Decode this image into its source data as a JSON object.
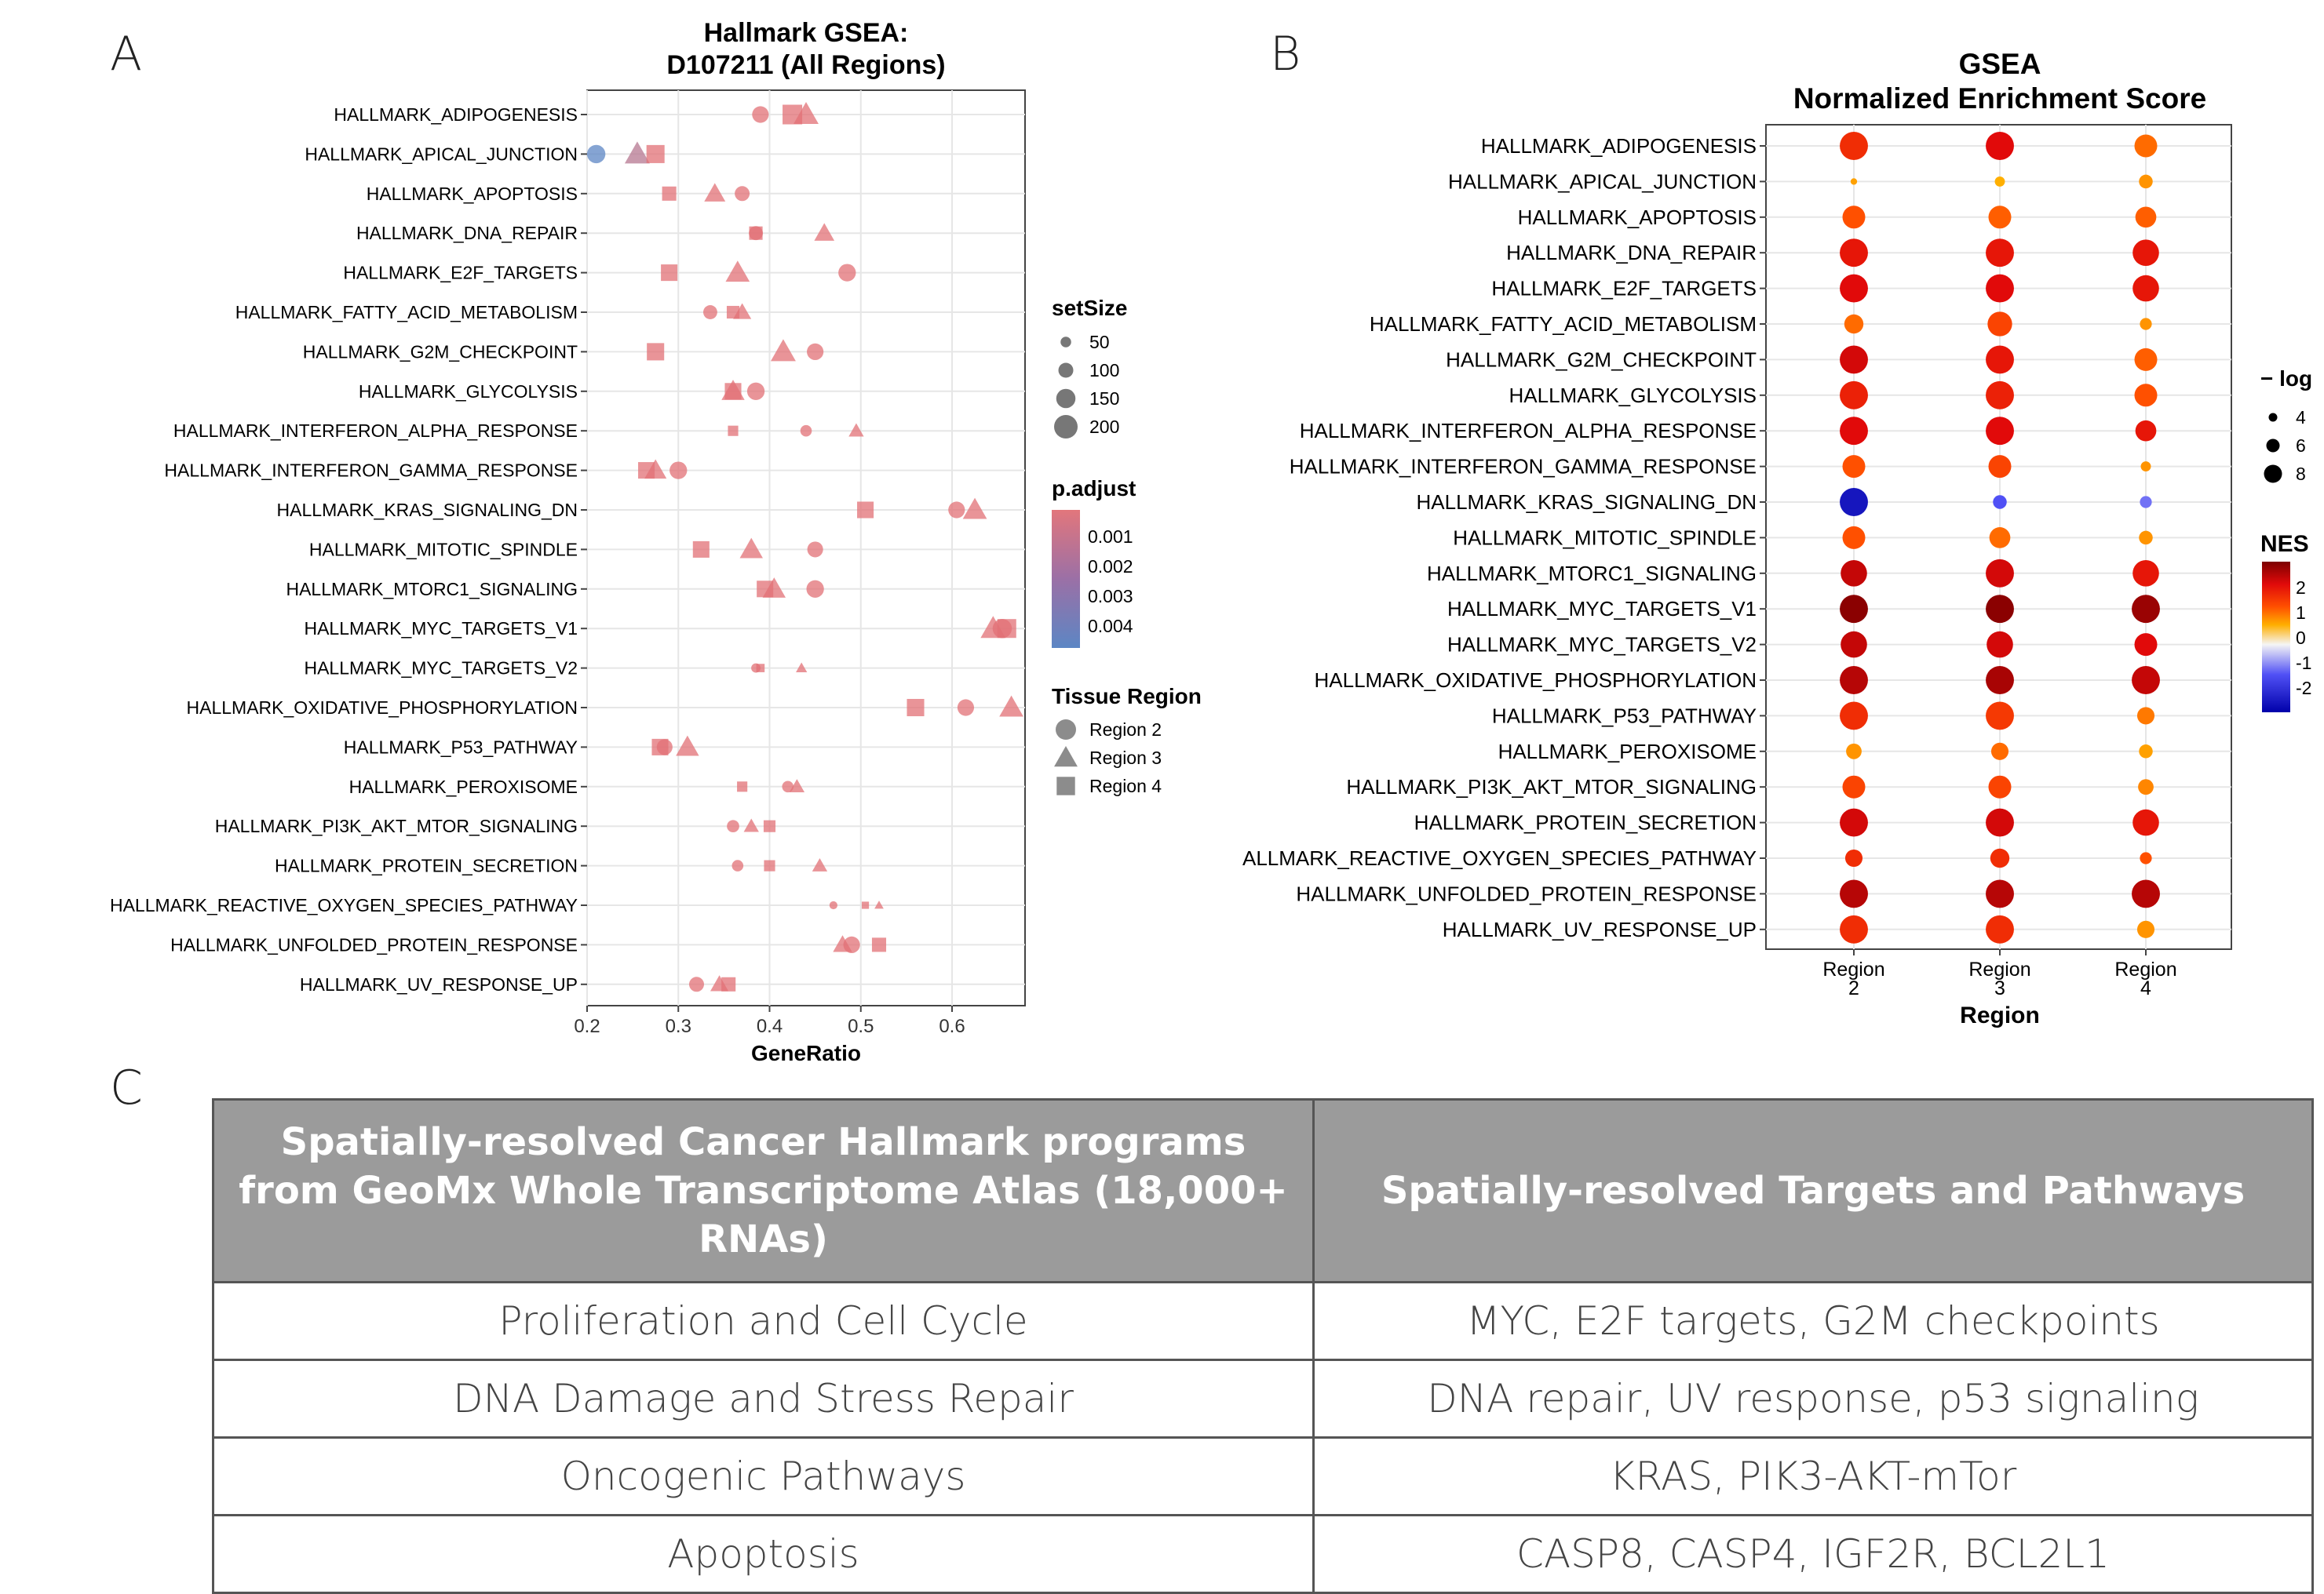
{
  "panel_labels": {
    "a": "A",
    "b": "B",
    "c": "C"
  },
  "chart_data": [
    {
      "type": "scatter",
      "panel": "A",
      "title": "Hallmark GSEA:",
      "subtitle": "D107211 (All Regions)",
      "xlabel": "GeneRatio",
      "ylabel": "",
      "xlim": [
        0.2,
        0.68
      ],
      "xticks": [
        "0.2",
        "0.3",
        "0.4",
        "0.5",
        "0.6"
      ],
      "grid": true,
      "categories": [
        "HALLMARK_ADIPOGENESIS",
        "HALLMARK_APICAL_JUNCTION",
        "HALLMARK_APOPTOSIS",
        "HALLMARK_DNA_REPAIR",
        "HALLMARK_E2F_TARGETS",
        "HALLMARK_FATTY_ACID_METABOLISM",
        "HALLMARK_G2M_CHECKPOINT",
        "HALLMARK_GLYCOLYSIS",
        "HALLMARK_INTERFERON_ALPHA_RESPONSE",
        "HALLMARK_INTERFERON_GAMMA_RESPONSE",
        "HALLMARK_KRAS_SIGNALING_DN",
        "HALLMARK_MITOTIC_SPINDLE",
        "HALLMARK_MTORC1_SIGNALING",
        "HALLMARK_MYC_TARGETS_V1",
        "HALLMARK_MYC_TARGETS_V2",
        "HALLMARK_OXIDATIVE_PHOSPHORYLATION",
        "HALLMARK_P53_PATHWAY",
        "HALLMARK_PEROXISOME",
        "HALLMARK_PI3K_AKT_MTOR_SIGNALING",
        "HALLMARK_PROTEIN_SECRETION",
        "HALLMARK_REACTIVE_OXYGEN_SPECIES_PATHWAY",
        "HALLMARK_UNFOLDED_PROTEIN_RESPONSE",
        "HALLMARK_UV_RESPONSE_UP"
      ],
      "series": [
        {
          "name": "Region 2",
          "shape": "circle",
          "x": [
            0.39,
            0.21,
            0.37,
            0.385,
            0.485,
            0.335,
            0.45,
            0.385,
            0.44,
            0.3,
            0.605,
            0.45,
            0.45,
            0.655,
            0.385,
            0.615,
            0.285,
            0.42,
            0.36,
            0.365,
            0.47,
            0.49,
            0.32
          ],
          "setSize": [
            120,
            140,
            100,
            90,
            130,
            90,
            120,
            130,
            60,
            130,
            120,
            110,
            130,
            150,
            35,
            120,
            110,
            60,
            70,
            60,
            20,
            120,
            100
          ],
          "p_adjust": [
            0.001,
            0.004,
            0.001,
            0.001,
            0.001,
            0.001,
            0.001,
            0.001,
            0.001,
            0.001,
            0.001,
            0.001,
            0.001,
            0.001,
            0.001,
            0.001,
            0.001,
            0.001,
            0.001,
            0.001,
            0.001,
            0.001,
            0.001
          ]
        },
        {
          "name": "Region 3",
          "shape": "triangle",
          "x": [
            0.44,
            0.255,
            0.34,
            0.46,
            0.365,
            0.37,
            0.415,
            0.36,
            0.495,
            0.275,
            0.625,
            0.38,
            0.405,
            0.645,
            0.435,
            0.665,
            0.31,
            0.43,
            0.38,
            0.455,
            0.52,
            0.48,
            0.345
          ],
          "setSize": [
            180,
            180,
            140,
            130,
            170,
            110,
            180,
            160,
            80,
            150,
            170,
            160,
            160,
            180,
            40,
            170,
            160,
            80,
            80,
            80,
            20,
            120,
            110
          ],
          "p_adjust": [
            0.001,
            0.002,
            0.001,
            0.001,
            0.001,
            0.001,
            0.001,
            0.001,
            0.001,
            0.001,
            0.001,
            0.001,
            0.001,
            0.001,
            0.001,
            0.001,
            0.001,
            0.001,
            0.001,
            0.001,
            0.001,
            0.001,
            0.001
          ]
        },
        {
          "name": "Region 4",
          "shape": "square",
          "x": [
            0.425,
            0.275,
            0.29,
            0.385,
            0.29,
            0.36,
            0.275,
            0.36,
            0.36,
            0.265,
            0.505,
            0.325,
            0.395,
            0.66,
            0.39,
            0.56,
            0.28,
            0.37,
            0.4,
            0.4,
            0.505,
            0.52,
            0.355
          ],
          "setSize": [
            180,
            160,
            110,
            100,
            140,
            90,
            150,
            140,
            60,
            140,
            140,
            140,
            140,
            170,
            35,
            150,
            140,
            60,
            80,
            70,
            20,
            110,
            110
          ],
          "p_adjust": [
            0.001,
            0.001,
            0.001,
            0.001,
            0.001,
            0.001,
            0.001,
            0.001,
            0.001,
            0.001,
            0.001,
            0.001,
            0.001,
            0.001,
            0.001,
            0.001,
            0.001,
            0.001,
            0.001,
            0.001,
            0.001,
            0.001,
            0.001
          ]
        }
      ],
      "legend_setSize": {
        "title": "setSize",
        "values": [
          "50",
          "100",
          "150",
          "200"
        ]
      },
      "legend_p_adjust": {
        "title": "p.adjust",
        "ticks": [
          "0.001",
          "0.002",
          "0.003",
          "0.004"
        ],
        "colors": [
          "#e2767c",
          "#9b70a6",
          "#5c86c4"
        ]
      },
      "legend_region": {
        "title": "Tissue Region",
        "items": [
          "Region 2",
          "Region 3",
          "Region 4"
        ]
      },
      "marker_color": "#e88a8d"
    },
    {
      "type": "scatter",
      "panel": "B",
      "title": "GSEA",
      "subtitle": "Normalized Enrichment Score",
      "xlabel": "Region",
      "ylabel": "",
      "grid": true,
      "x_categories": [
        "Region\n2",
        "Region\n3",
        "Region\n4"
      ],
      "categories": [
        "HALLMARK_ADIPOGENESIS",
        "HALLMARK_APICAL_JUNCTION",
        "HALLMARK_APOPTOSIS",
        "HALLMARK_DNA_REPAIR",
        "HALLMARK_E2F_TARGETS",
        "HALLMARK_FATTY_ACID_METABOLISM",
        "HALLMARK_G2M_CHECKPOINT",
        "HALLMARK_GLYCOLYSIS",
        "HALLMARK_INTERFERON_ALPHA_RESPONSE",
        "HALLMARK_INTERFERON_GAMMA_RESPONSE",
        "HALLMARK_KRAS_SIGNALING_DN",
        "HALLMARK_MITOTIC_SPINDLE",
        "HALLMARK_MTORC1_SIGNALING",
        "HALLMARK_MYC_TARGETS_V1",
        "HALLMARK_MYC_TARGETS_V2",
        "HALLMARK_OXIDATIVE_PHOSPHORYLATION",
        "HALLMARK_P53_PATHWAY",
        "HALLMARK_PEROXISOME",
        "HALLMARK_PI3K_AKT_MTOR_SIGNALING",
        "HALLMARK_PROTEIN_SECRETION",
        "ALLMARK_REACTIVE_OXYGEN_SPECIES_PATHWAY",
        "HALLMARK_UNFOLDED_PROTEIN_RESPONSE",
        "HALLMARK_UV_RESPONSE_UP"
      ],
      "series": [
        {
          "name": "Region 2",
          "NES": [
            1.8,
            0.9,
            1.5,
            2.0,
            2.1,
            1.3,
            2.2,
            1.9,
            2.1,
            1.5,
            -2.3,
            1.5,
            2.3,
            2.7,
            2.3,
            2.4,
            1.8,
            1.0,
            1.6,
            2.2,
            1.8,
            2.4,
            1.8
          ],
          "neg_log10_p": [
            8.5,
            2.5,
            7.0,
            8.5,
            8.5,
            6.0,
            8.5,
            8.5,
            8.5,
            7.0,
            8.5,
            7.0,
            8.0,
            8.5,
            8.0,
            8.5,
            8.5,
            5.0,
            7.0,
            8.5,
            5.5,
            8.5,
            8.5
          ]
        },
        {
          "name": "Region 3",
          "NES": [
            2.1,
            0.8,
            1.4,
            2.0,
            2.1,
            1.6,
            2.0,
            1.9,
            2.1,
            1.6,
            -1.5,
            1.3,
            2.2,
            2.7,
            2.2,
            2.5,
            1.7,
            1.3,
            1.6,
            2.2,
            1.8,
            2.4,
            1.8
          ],
          "neg_log10_p": [
            8.5,
            3.5,
            7.0,
            8.5,
            8.5,
            7.5,
            8.5,
            8.5,
            8.5,
            7.0,
            4.5,
            6.5,
            8.5,
            8.5,
            8.0,
            8.5,
            8.5,
            5.5,
            7.0,
            8.5,
            6.0,
            8.5,
            8.5
          ]
        },
        {
          "name": "Region 4",
          "NES": [
            1.3,
            1.0,
            1.4,
            2.0,
            2.0,
            1.0,
            1.4,
            1.5,
            2.0,
            1.0,
            -1.2,
            1.0,
            2.0,
            2.6,
            2.1,
            2.3,
            1.2,
            0.9,
            1.1,
            2.0,
            1.5,
            2.4,
            1.0
          ],
          "neg_log10_p": [
            7.0,
            4.5,
            6.5,
            8.0,
            8.0,
            4.0,
            7.0,
            7.0,
            6.5,
            3.5,
            4.0,
            4.5,
            8.0,
            8.5,
            7.0,
            8.5,
            5.5,
            4.5,
            5.0,
            8.0,
            4.0,
            8.5,
            5.5
          ]
        }
      ],
      "legend_size": {
        "title": "− log",
        "values": [
          "4",
          "6",
          "8"
        ]
      },
      "legend_nes": {
        "title": "NES",
        "ticks": [
          "2",
          "1",
          "0",
          "-1",
          "-2"
        ]
      }
    }
  ],
  "table": {
    "headers": [
      "Spatially-resolved Cancer Hallmark programs from GeoMx Whole Transcriptome Atlas (18,000+ RNAs)",
      "Spatially-resolved Targets and Pathways"
    ],
    "rows": [
      [
        "Proliferation and Cell Cycle",
        "MYC, E2F targets, G2M checkpoints"
      ],
      [
        "DNA Damage and Stress Repair",
        "DNA repair, UV response, p53 signaling"
      ],
      [
        "Oncogenic Pathways",
        "KRAS, PIK3-AKT-mTor"
      ],
      [
        "Apoptosis",
        "CASP8, CASP4, IGF2R, BCL2L1"
      ]
    ]
  }
}
